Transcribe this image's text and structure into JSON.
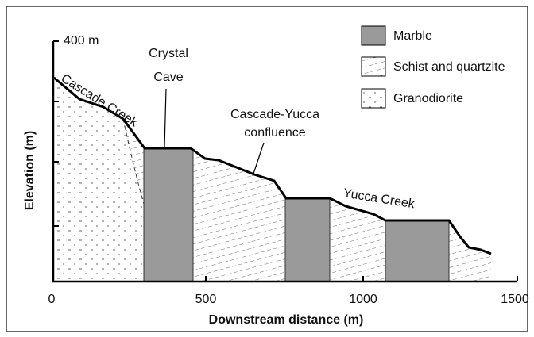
{
  "axes": {
    "x_label": "Downstream distance (m)",
    "x_ticks": [
      "0",
      "500",
      "1000",
      "1500"
    ],
    "y_label": "Elevation (m)",
    "y_top_label": "400 m"
  },
  "legend": [
    {
      "label": "Marble"
    },
    {
      "label": "Schist and quartzite"
    },
    {
      "label": "Granodiorite"
    }
  ],
  "annotations": {
    "crystal_cave": [
      "Crystal",
      "Cave"
    ],
    "cascade_creek": "Cascade Creek",
    "confluence": [
      "Cascade-Yucca",
      "confluence"
    ],
    "yucca_creek": "Yucca Creek"
  }
}
